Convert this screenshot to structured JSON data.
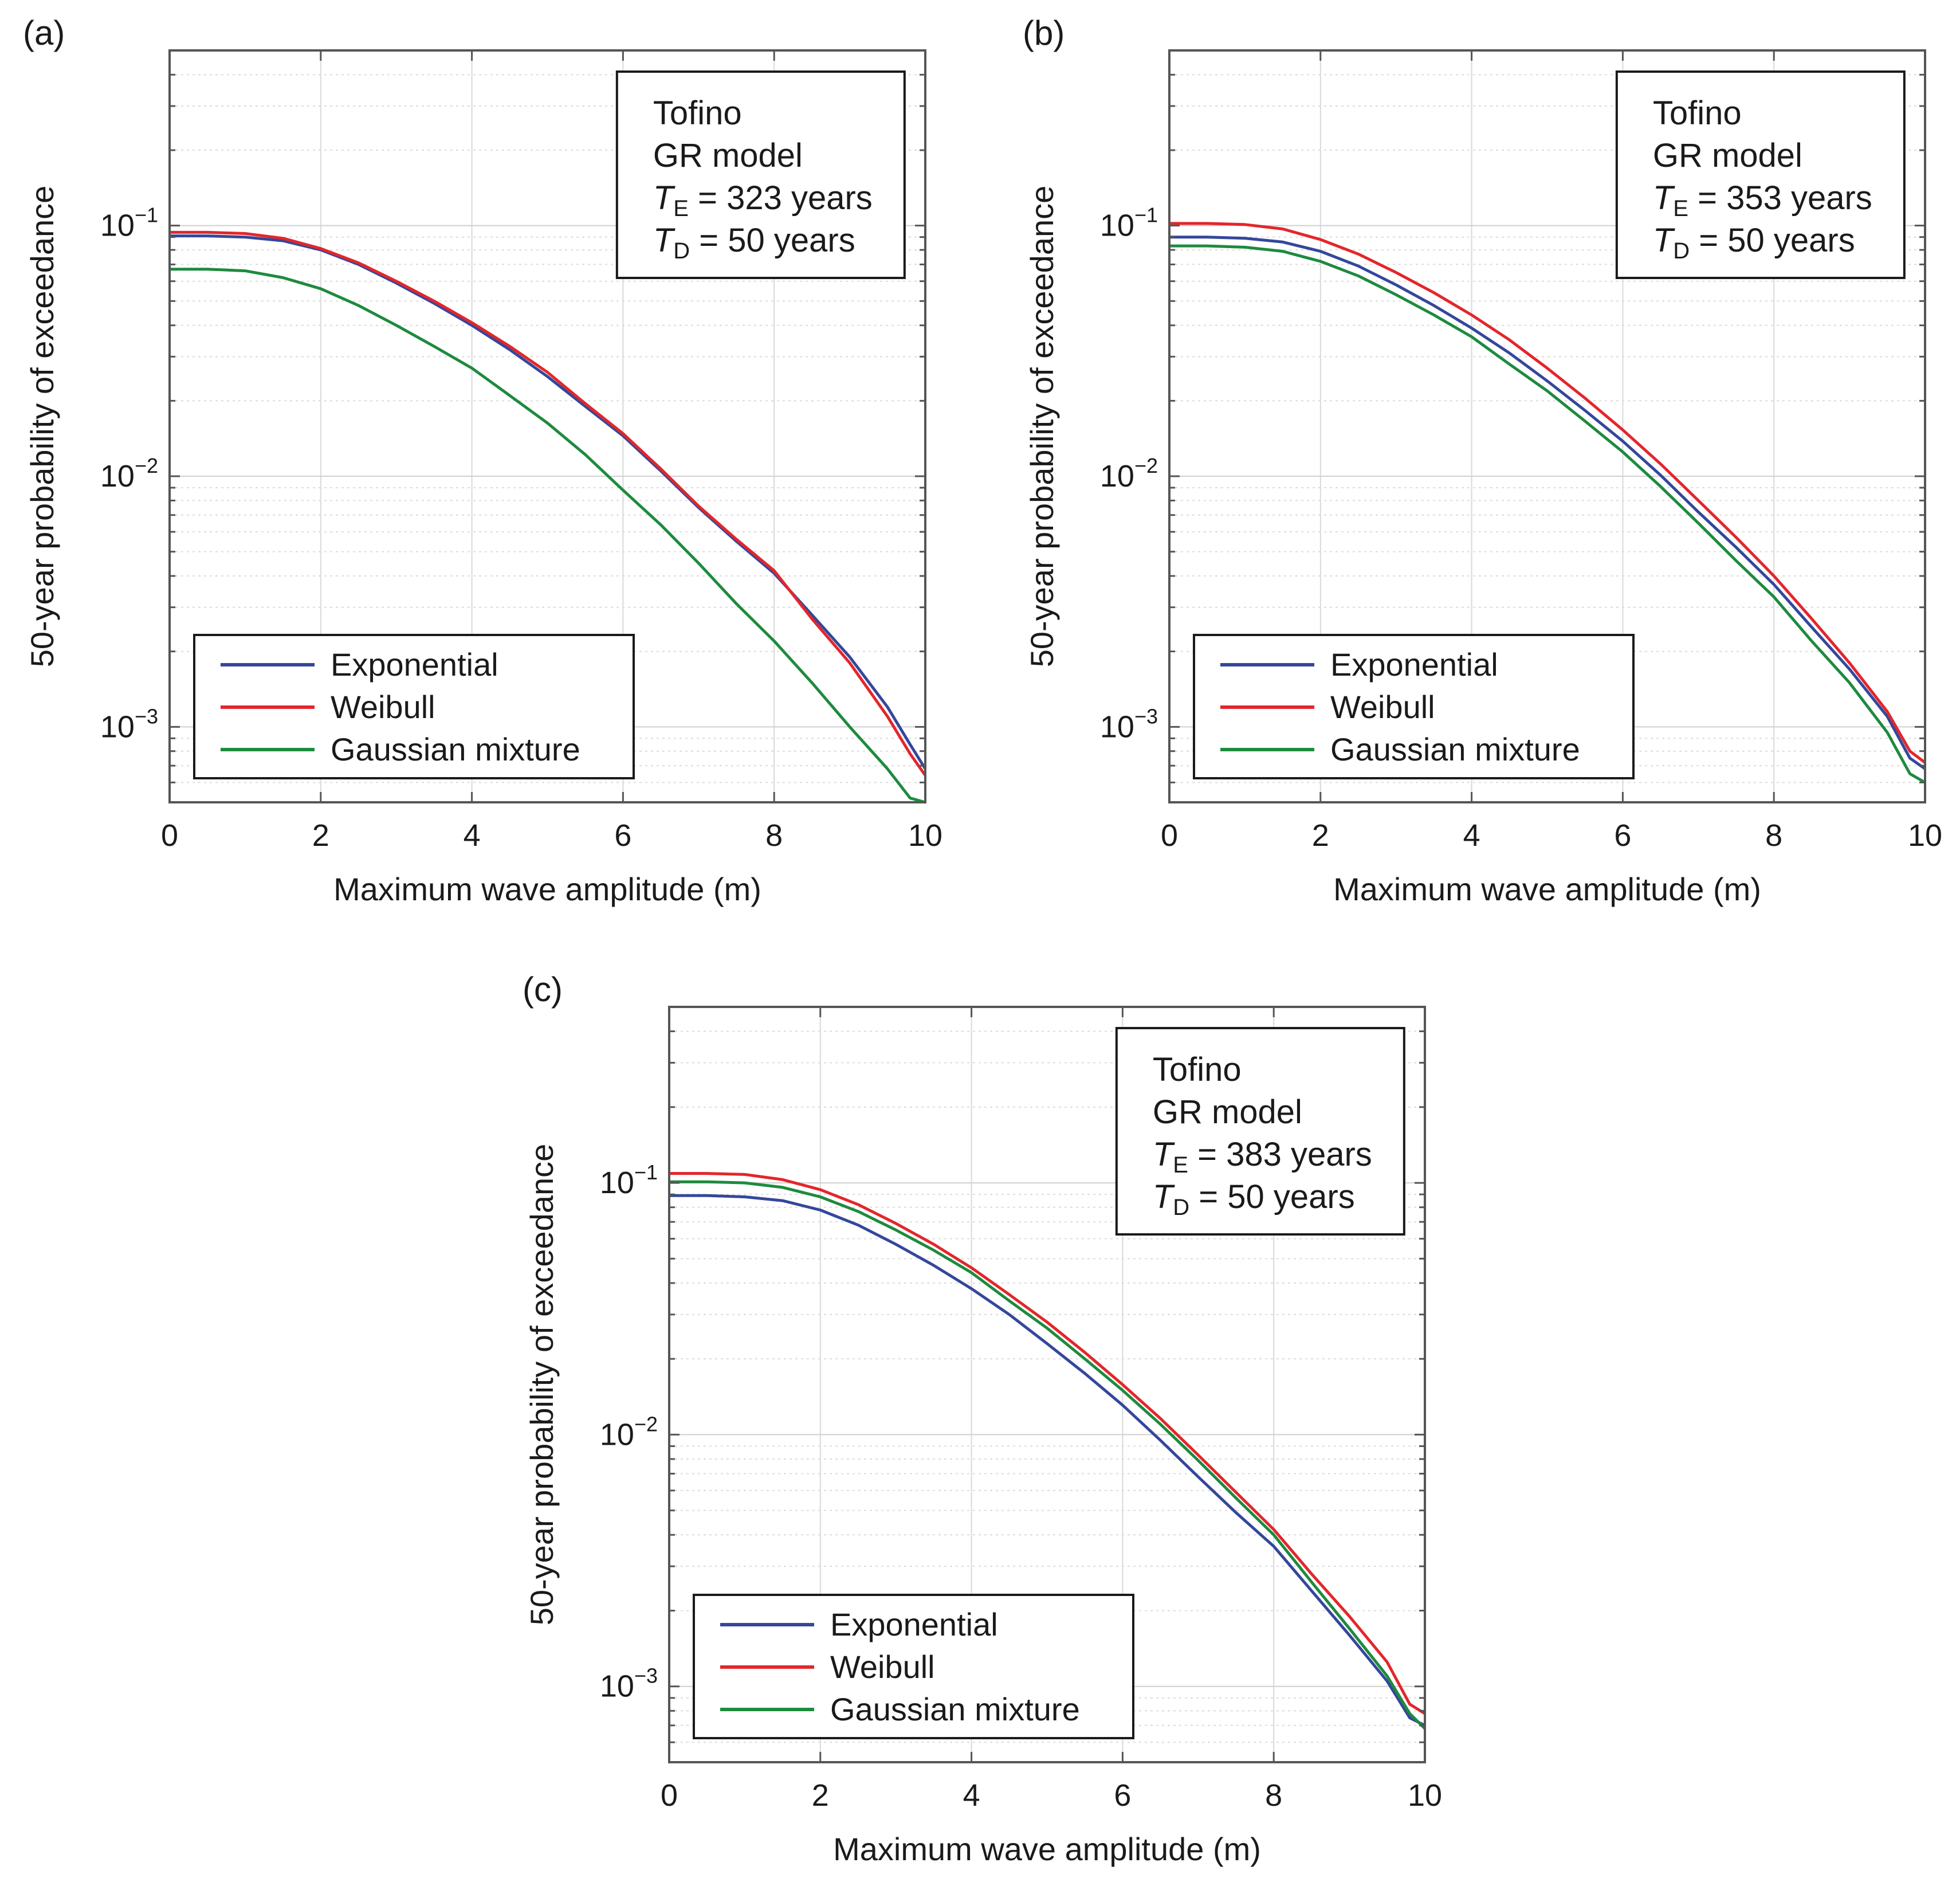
{
  "chart_data": [
    {
      "panel": "(a)",
      "type": "line",
      "xlabel": "Maximum wave amplitude (m)",
      "ylabel": "50-year probability of exceedance",
      "xlim": [
        0,
        10
      ],
      "ylim": [
        0.0005,
        0.5
      ],
      "yscale": "log",
      "xticks": [
        "0",
        "2",
        "4",
        "6",
        "8",
        "10"
      ],
      "yticks": [
        {
          "base": "10",
          "exp": "−1",
          "value": 0.1
        },
        {
          "base": "10",
          "exp": "−2",
          "value": 0.01
        },
        {
          "base": "10",
          "exp": "−3",
          "value": 0.001
        }
      ],
      "grid": true,
      "annotation": {
        "site": "Tofino",
        "model": "GR model",
        "te_var": "T",
        "te_sub": "E",
        "te_text": " = 323 years",
        "td_var": "T",
        "td_sub": "D",
        "td_text": " = 50 years"
      },
      "legend_position": "lower-left",
      "x": [
        0,
        0.5,
        1,
        1.5,
        2,
        2.5,
        3,
        3.5,
        4,
        4.5,
        5,
        5.5,
        6,
        6.5,
        7,
        7.5,
        8,
        8.5,
        9,
        9.5,
        9.8,
        10
      ],
      "series": [
        {
          "name": "Exponential",
          "color": "#34479b",
          "values": [
            0.091,
            0.091,
            0.09,
            0.087,
            0.08,
            0.07,
            0.059,
            0.049,
            0.04,
            0.032,
            0.025,
            0.019,
            0.0145,
            0.0105,
            0.0075,
            0.0055,
            0.0041,
            0.0028,
            0.0019,
            0.0012,
            0.00085,
            0.00068
          ]
        },
        {
          "name": "Weibull",
          "color": "#e3262b",
          "values": [
            0.094,
            0.094,
            0.093,
            0.089,
            0.081,
            0.071,
            0.06,
            0.05,
            0.041,
            0.033,
            0.026,
            0.0195,
            0.0148,
            0.0107,
            0.0076,
            0.0056,
            0.0042,
            0.0027,
            0.0018,
            0.0011,
            0.00078,
            0.00064
          ]
        },
        {
          "name": "Gaussian mixture",
          "color": "#1e8a3e",
          "values": [
            0.067,
            0.067,
            0.066,
            0.062,
            0.056,
            0.048,
            0.04,
            0.033,
            0.027,
            0.021,
            0.0163,
            0.0122,
            0.0088,
            0.0064,
            0.0045,
            0.0031,
            0.0022,
            0.0015,
            0.001,
            0.00068,
            0.00052,
            0.0005
          ]
        }
      ]
    },
    {
      "panel": "(b)",
      "type": "line",
      "xlabel": "Maximum wave amplitude (m)",
      "ylabel": "50-year probability of exceedance",
      "xlim": [
        0,
        10
      ],
      "ylim": [
        0.0005,
        0.5
      ],
      "yscale": "log",
      "xticks": [
        "0",
        "2",
        "4",
        "6",
        "8",
        "10"
      ],
      "yticks": [
        {
          "base": "10",
          "exp": "−1",
          "value": 0.1
        },
        {
          "base": "10",
          "exp": "−2",
          "value": 0.01
        },
        {
          "base": "10",
          "exp": "−3",
          "value": 0.001
        }
      ],
      "grid": true,
      "annotation": {
        "site": "Tofino",
        "model": "GR model",
        "te_var": "T",
        "te_sub": "E",
        "te_text": " = 353 years",
        "td_var": "T",
        "td_sub": "D",
        "td_text": " = 50 years"
      },
      "legend_position": "lower-left",
      "x": [
        0,
        0.5,
        1,
        1.5,
        2,
        2.5,
        3,
        3.5,
        4,
        4.5,
        5,
        5.5,
        6,
        6.5,
        7,
        7.5,
        8,
        8.5,
        9,
        9.5,
        9.8,
        10
      ],
      "series": [
        {
          "name": "Exponential",
          "color": "#34479b",
          "values": [
            0.09,
            0.09,
            0.089,
            0.086,
            0.079,
            0.069,
            0.058,
            0.048,
            0.039,
            0.031,
            0.024,
            0.0183,
            0.0138,
            0.0101,
            0.0072,
            0.0052,
            0.0037,
            0.0025,
            0.0017,
            0.0011,
            0.00075,
            0.00068
          ]
        },
        {
          "name": "Weibull",
          "color": "#e3262b",
          "values": [
            0.102,
            0.102,
            0.101,
            0.097,
            0.088,
            0.077,
            0.065,
            0.054,
            0.044,
            0.035,
            0.027,
            0.0205,
            0.0153,
            0.0112,
            0.008,
            0.0057,
            0.004,
            0.0027,
            0.0018,
            0.00115,
            0.0008,
            0.00072
          ]
        },
        {
          "name": "Gaussian mixture",
          "color": "#1e8a3e",
          "values": [
            0.083,
            0.083,
            0.082,
            0.079,
            0.072,
            0.063,
            0.053,
            0.044,
            0.036,
            0.028,
            0.0219,
            0.0166,
            0.0125,
            0.0091,
            0.0065,
            0.0046,
            0.0033,
            0.0022,
            0.0015,
            0.00095,
            0.00065,
            0.0006
          ]
        }
      ]
    },
    {
      "panel": "(c)",
      "type": "line",
      "xlabel": "Maximum wave amplitude (m)",
      "ylabel": "50-year probability of exceedance",
      "xlim": [
        0,
        10
      ],
      "ylim": [
        0.0005,
        0.5
      ],
      "yscale": "log",
      "xticks": [
        "0",
        "2",
        "4",
        "6",
        "8",
        "10"
      ],
      "yticks": [
        {
          "base": "10",
          "exp": "−1",
          "value": 0.1
        },
        {
          "base": "10",
          "exp": "−2",
          "value": 0.01
        },
        {
          "base": "10",
          "exp": "−3",
          "value": 0.001
        }
      ],
      "grid": true,
      "annotation": {
        "site": "Tofino",
        "model": "GR model",
        "te_var": "T",
        "te_sub": "E",
        "te_text": " = 383 years",
        "td_var": "T",
        "td_sub": "D",
        "td_text": " = 50 years"
      },
      "legend_position": "lower-left",
      "x": [
        0,
        0.5,
        1,
        1.5,
        2,
        2.5,
        3,
        3.5,
        4,
        4.5,
        5,
        5.5,
        6,
        6.5,
        7,
        7.5,
        8,
        8.5,
        9,
        9.5,
        9.8,
        10
      ],
      "series": [
        {
          "name": "Exponential",
          "color": "#34479b",
          "values": [
            0.089,
            0.089,
            0.088,
            0.085,
            0.078,
            0.068,
            0.057,
            0.047,
            0.038,
            0.03,
            0.023,
            0.0175,
            0.0131,
            0.0095,
            0.0068,
            0.0049,
            0.0036,
            0.0024,
            0.0016,
            0.00105,
            0.00075,
            0.0007
          ]
        },
        {
          "name": "Weibull",
          "color": "#e3262b",
          "values": [
            0.109,
            0.109,
            0.108,
            0.103,
            0.094,
            0.082,
            0.069,
            0.057,
            0.046,
            0.036,
            0.028,
            0.0212,
            0.0158,
            0.0116,
            0.0083,
            0.0059,
            0.0042,
            0.0028,
            0.0019,
            0.00125,
            0.00085,
            0.00078
          ]
        },
        {
          "name": "Gaussian mixture",
          "color": "#1e8a3e",
          "values": [
            0.101,
            0.101,
            0.1,
            0.096,
            0.088,
            0.077,
            0.065,
            0.054,
            0.044,
            0.034,
            0.0265,
            0.02,
            0.015,
            0.011,
            0.0079,
            0.0056,
            0.004,
            0.0026,
            0.0017,
            0.0011,
            0.00078,
            0.00068
          ]
        }
      ]
    }
  ]
}
